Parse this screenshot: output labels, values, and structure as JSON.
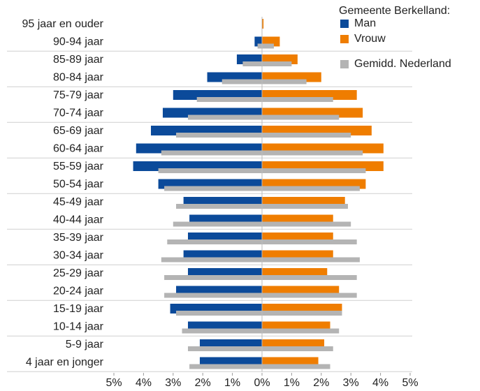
{
  "chart_data": {
    "type": "population-pyramid",
    "categories": [
      "95 jaar en ouder",
      "90-94 jaar",
      "85-89 jaar",
      "80-84 jaar",
      "75-79 jaar",
      "70-74 jaar",
      "65-69 jaar",
      "60-64 jaar",
      "55-59 jaar",
      "50-54 jaar",
      "45-49 jaar",
      "40-44 jaar",
      "35-39 jaar",
      "30-34 jaar",
      "25-29 jaar",
      "20-24 jaar",
      "15-19 jaar",
      "10-14 jaar",
      "5-9 jaar",
      "4 jaar en jonger"
    ],
    "legend_title": "Gemeente Berkelland:",
    "series": [
      {
        "name": "Man",
        "color": "#0b4a9a",
        "side": "left",
        "values": [
          0,
          0.25,
          0.85,
          1.85,
          3.0,
          3.35,
          3.75,
          4.25,
          4.35,
          3.5,
          2.65,
          2.45,
          2.5,
          2.65,
          2.5,
          2.9,
          3.1,
          2.5,
          2.1,
          2.1
        ]
      },
      {
        "name": "Vrouw",
        "color": "#ef7d00",
        "side": "right",
        "values": [
          0.05,
          0.6,
          1.2,
          2.0,
          3.2,
          3.4,
          3.7,
          4.1,
          4.1,
          3.5,
          2.8,
          2.4,
          2.4,
          2.4,
          2.2,
          2.6,
          2.7,
          2.3,
          2.1,
          1.9
        ]
      }
    ],
    "reference": {
      "name": "Gemidd. Nederland",
      "color": "#b4b4b4",
      "values_man": [
        0,
        0.15,
        0.65,
        1.35,
        2.2,
        2.5,
        2.9,
        3.4,
        3.5,
        3.3,
        2.9,
        3.0,
        3.2,
        3.4,
        3.3,
        3.3,
        2.9,
        2.7,
        2.5,
        2.45
      ],
      "values_vrouw": [
        0,
        0.4,
        1.0,
        1.5,
        2.4,
        2.6,
        3.0,
        3.4,
        3.5,
        3.3,
        2.9,
        3.0,
        3.2,
        3.3,
        3.2,
        3.2,
        2.7,
        2.6,
        2.4,
        2.3
      ]
    },
    "xlim": [
      -5,
      5
    ],
    "xticks": [
      {
        "value": -5,
        "label": "5%"
      },
      {
        "value": -4,
        "label": "4%"
      },
      {
        "value": -3,
        "label": "3%"
      },
      {
        "value": -2,
        "label": "2%"
      },
      {
        "value": -1,
        "label": "1%"
      },
      {
        "value": 0,
        "label": "0%"
      },
      {
        "value": 1,
        "label": "1%"
      },
      {
        "value": 2,
        "label": "2%"
      },
      {
        "value": 3,
        "label": "3%"
      },
      {
        "value": 4,
        "label": "4%"
      },
      {
        "value": 5,
        "label": "5%"
      }
    ]
  }
}
